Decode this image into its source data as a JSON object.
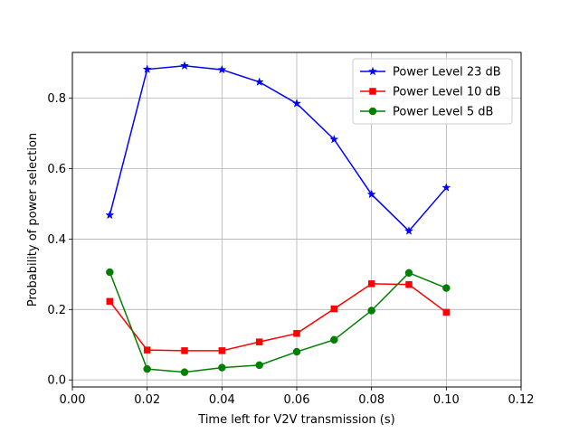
{
  "chart_data": {
    "type": "line",
    "title": "",
    "xlabel": "Time left for V2V transmission (s)",
    "ylabel": "Probability of power selection",
    "xlim": [
      0.0,
      0.12
    ],
    "ylim": [
      -0.02,
      0.93
    ],
    "xticks": [
      0.0,
      0.02,
      0.04,
      0.06,
      0.08,
      0.1,
      0.12
    ],
    "xtick_labels": [
      "0.00",
      "0.02",
      "0.04",
      "0.06",
      "0.08",
      "0.10",
      "0.12"
    ],
    "yticks": [
      0.0,
      0.2,
      0.4,
      0.6,
      0.8
    ],
    "ytick_labels": [
      "0.0",
      "0.2",
      "0.4",
      "0.6",
      "0.8"
    ],
    "grid": true,
    "legend_position": "top-right",
    "x": [
      0.01,
      0.02,
      0.03,
      0.04,
      0.05,
      0.06,
      0.07,
      0.08,
      0.09,
      0.1
    ],
    "series": [
      {
        "name": "Power Level 23 dB",
        "color": "#0000ff",
        "marker": "star",
        "values": [
          0.468,
          0.882,
          0.892,
          0.881,
          0.846,
          0.785,
          0.683,
          0.527,
          0.423,
          0.546
        ]
      },
      {
        "name": "Power Level 10 dB",
        "color": "#ff0000",
        "marker": "square",
        "values": [
          0.223,
          0.085,
          0.083,
          0.083,
          0.108,
          0.132,
          0.202,
          0.273,
          0.271,
          0.192
        ]
      },
      {
        "name": "Power Level 5 dB",
        "color": "#008000",
        "marker": "circle",
        "values": [
          0.306,
          0.031,
          0.022,
          0.035,
          0.042,
          0.08,
          0.114,
          0.197,
          0.304,
          0.261
        ]
      }
    ]
  }
}
